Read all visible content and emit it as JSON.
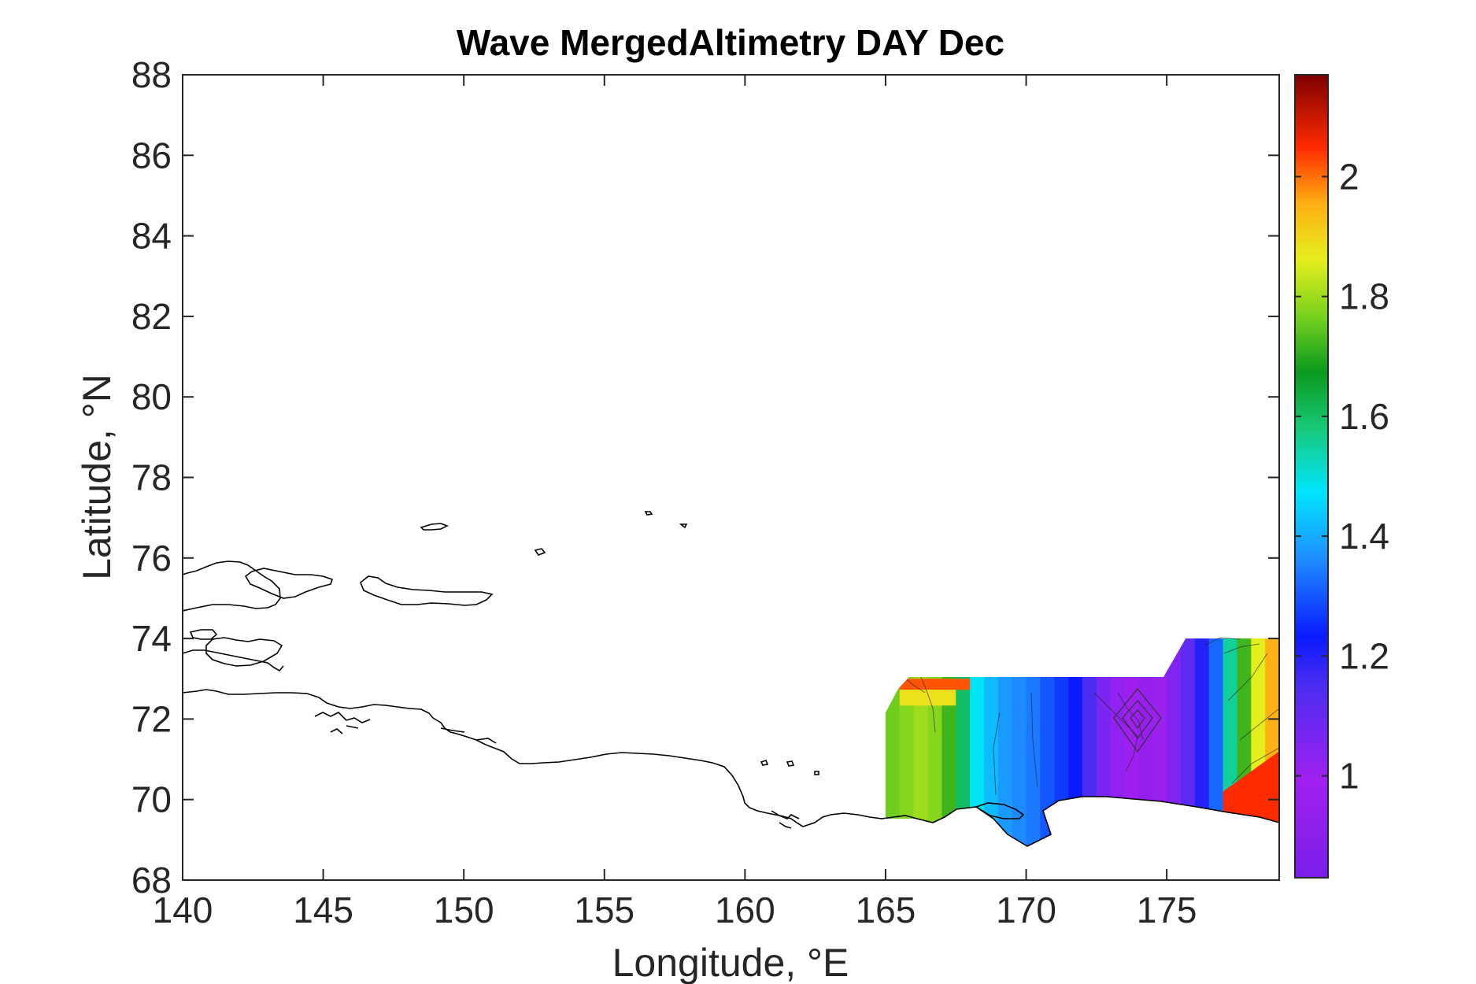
{
  "chart_data": {
    "type": "heatmap",
    "title": "Wave MergedAltimetry DAY Dec",
    "xlabel": "Longitude, °E",
    "ylabel": "Latitude, °N",
    "xlim": [
      140,
      179
    ],
    "ylim": [
      68,
      88
    ],
    "x_ticks": [
      140,
      145,
      150,
      155,
      160,
      165,
      170,
      175
    ],
    "y_ticks": [
      68,
      70,
      72,
      74,
      76,
      78,
      80,
      82,
      84,
      86,
      88
    ],
    "colorbar": {
      "range": [
        0.83,
        2.17
      ],
      "ticks": [
        1,
        1.2,
        1.4,
        1.6,
        1.8,
        2
      ],
      "colormap": "jet-like (purple → blue → cyan → green → yellow → red → dark red)"
    },
    "field_columns": [
      {
        "lon": 165.0,
        "value": 1.76
      },
      {
        "lon": 165.5,
        "value": 1.78
      },
      {
        "lon": 166.0,
        "value": 1.8
      },
      {
        "lon": 166.5,
        "value": 1.78
      },
      {
        "lon": 167.0,
        "value": 1.72
      },
      {
        "lon": 167.5,
        "value": 1.6
      },
      {
        "lon": 168.0,
        "value": 1.48
      },
      {
        "lon": 168.5,
        "value": 1.42
      },
      {
        "lon": 169.0,
        "value": 1.38
      },
      {
        "lon": 169.5,
        "value": 1.36
      },
      {
        "lon": 170.0,
        "value": 1.34
      },
      {
        "lon": 170.5,
        "value": 1.3
      },
      {
        "lon": 171.0,
        "value": 1.27
      },
      {
        "lon": 171.5,
        "value": 1.23
      },
      {
        "lon": 172.0,
        "value": 1.15
      },
      {
        "lon": 172.5,
        "value": 1.06
      },
      {
        "lon": 173.0,
        "value": 1.02
      },
      {
        "lon": 173.5,
        "value": 0.98
      },
      {
        "lon": 174.0,
        "value": 0.95
      },
      {
        "lon": 174.5,
        "value": 1.0
      },
      {
        "lon": 175.0,
        "value": 1.05
      },
      {
        "lon": 175.5,
        "value": 1.12
      },
      {
        "lon": 176.0,
        "value": 1.2
      },
      {
        "lon": 176.5,
        "value": 1.32
      },
      {
        "lon": 177.0,
        "value": 1.55
      },
      {
        "lon": 177.5,
        "value": 1.72
      },
      {
        "lon": 178.0,
        "value": 1.86
      },
      {
        "lon": 178.5,
        "value": 1.95
      }
    ]
  }
}
